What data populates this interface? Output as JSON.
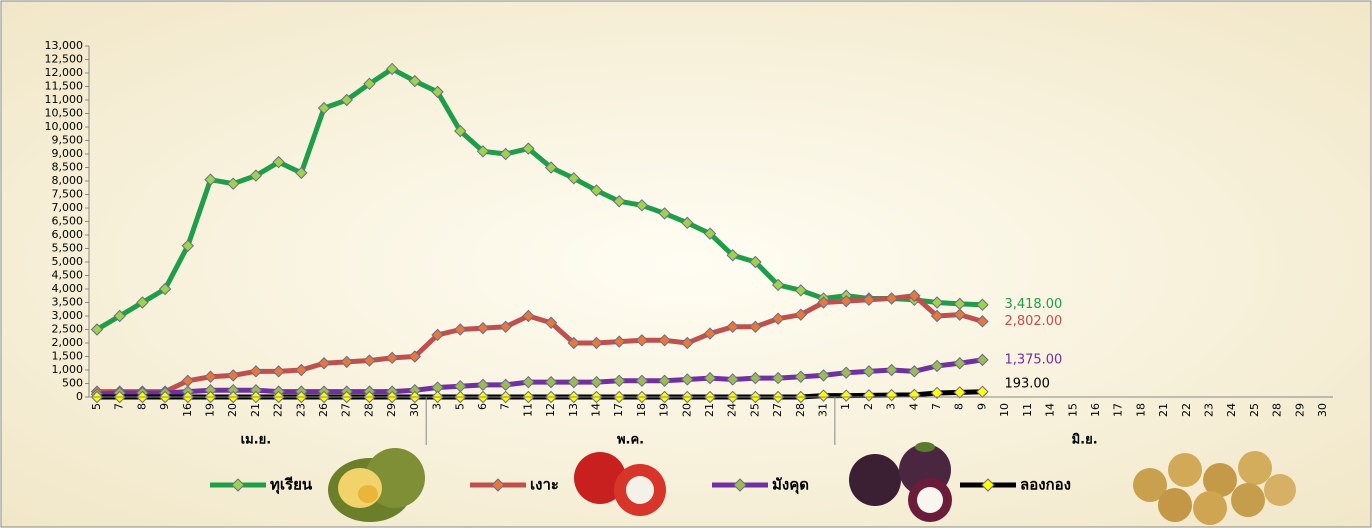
{
  "chart_data": {
    "type": "line",
    "categories": [
      "5",
      "7",
      "8",
      "9",
      "16",
      "19",
      "20",
      "21",
      "22",
      "23",
      "26",
      "27",
      "28",
      "29",
      "30",
      "3",
      "5",
      "6",
      "7",
      "11",
      "12",
      "13",
      "14",
      "17",
      "18",
      "19",
      "20",
      "21",
      "24",
      "25",
      "27",
      "28",
      "31",
      "1",
      "2",
      "3",
      "4",
      "7",
      "8",
      "9",
      "10",
      "11",
      "14",
      "15",
      "16",
      "17",
      "18",
      "21",
      "22",
      "23",
      "24",
      "25",
      "28",
      "29",
      "30"
    ],
    "months": [
      "เม.ย.",
      "พ.ค.",
      "มิ.ย."
    ],
    "series": [
      {
        "name": "ทุเรียน",
        "color": "#1e9e48",
        "marker_color": "#9bd34c",
        "values": [
          2500,
          3000,
          3500,
          4000,
          5600,
          8050,
          7900,
          8200,
          8700,
          8300,
          10700,
          11000,
          11600,
          12150,
          11700,
          11300,
          9850,
          9100,
          9000,
          9200,
          8500,
          8100,
          7650,
          7250,
          7100,
          6800,
          6450,
          6050,
          5250,
          5000,
          4150,
          3950,
          3650,
          3750,
          3650,
          3650,
          3600,
          3500,
          3450,
          3418,
          null,
          null,
          null,
          null,
          null,
          null,
          null,
          null,
          null,
          null,
          null,
          null,
          null,
          null,
          null
        ],
        "value_labels": [
          null,
          null,
          null,
          null,
          null,
          null,
          null,
          null,
          null,
          null,
          null,
          null,
          null,
          null,
          null,
          null,
          null,
          null,
          null,
          null,
          null,
          null,
          null,
          null,
          null,
          null,
          null,
          null,
          null,
          null,
          null,
          null,
          null,
          null,
          null,
          null,
          null,
          null,
          null,
          "3,418.00",
          null,
          null,
          null,
          null,
          null,
          null,
          null,
          null,
          null,
          null,
          null,
          null,
          null,
          null,
          null
        ]
      },
      {
        "name": "เงาะ",
        "color": "#c0504d",
        "marker_color": "#e8773a",
        "values": [
          200,
          200,
          200,
          200,
          600,
          750,
          800,
          950,
          950,
          1000,
          1250,
          1300,
          1350,
          1450,
          1500,
          2300,
          2500,
          2550,
          2600,
          3000,
          2750,
          2000,
          2000,
          2050,
          2100,
          2100,
          2000,
          2350,
          2600,
          2600,
          2900,
          3050,
          3500,
          3550,
          3600,
          3650,
          3750,
          3000,
          3050,
          2802,
          null,
          null,
          null,
          null,
          null,
          null,
          null,
          null,
          null,
          null,
          null,
          null,
          null,
          null,
          null
        ],
        "value_labels": [
          null,
          null,
          null,
          null,
          null,
          null,
          null,
          null,
          null,
          null,
          null,
          null,
          null,
          null,
          null,
          null,
          null,
          null,
          null,
          null,
          null,
          null,
          null,
          null,
          null,
          null,
          null,
          null,
          null,
          null,
          null,
          null,
          null,
          null,
          null,
          null,
          null,
          null,
          null,
          "2,802.00",
          null,
          null,
          null,
          null,
          null,
          null,
          null,
          null,
          null,
          null,
          null,
          null,
          null,
          null,
          null
        ]
      },
      {
        "name": "มังคุด",
        "color": "#7030a0",
        "marker_color": "#9bbb59",
        "values": [
          100,
          150,
          150,
          150,
          200,
          250,
          250,
          250,
          200,
          200,
          200,
          200,
          200,
          200,
          250,
          350,
          400,
          450,
          450,
          550,
          550,
          550,
          550,
          600,
          600,
          600,
          650,
          700,
          650,
          700,
          700,
          750,
          800,
          900,
          950,
          1000,
          950,
          1150,
          1250,
          1375,
          null,
          null,
          null,
          null,
          null,
          null,
          null,
          null,
          null,
          null,
          null,
          null,
          null,
          null,
          null
        ],
        "value_labels": [
          null,
          null,
          null,
          null,
          null,
          null,
          null,
          null,
          null,
          null,
          null,
          null,
          null,
          null,
          null,
          null,
          null,
          null,
          null,
          null,
          null,
          null,
          null,
          null,
          null,
          null,
          null,
          null,
          null,
          null,
          null,
          null,
          null,
          null,
          null,
          null,
          null,
          null,
          null,
          "1,375.00",
          null,
          null,
          null,
          null,
          null,
          null,
          null,
          null,
          null,
          null,
          null,
          null,
          null,
          null,
          null
        ]
      },
      {
        "name": "ลองกอง",
        "color": "#000000",
        "marker_color": "#ffff00",
        "values": [
          0,
          0,
          0,
          0,
          0,
          0,
          0,
          0,
          0,
          0,
          0,
          0,
          0,
          0,
          0,
          0,
          0,
          0,
          0,
          0,
          0,
          0,
          0,
          0,
          0,
          0,
          0,
          0,
          0,
          0,
          0,
          0,
          50,
          50,
          60,
          70,
          80,
          150,
          170,
          193,
          null,
          null,
          null,
          null,
          null,
          null,
          null,
          null,
          null,
          null,
          null,
          null,
          null,
          null,
          null
        ],
        "value_labels": [
          null,
          null,
          null,
          null,
          null,
          null,
          null,
          null,
          null,
          null,
          null,
          null,
          null,
          null,
          null,
          null,
          null,
          null,
          null,
          null,
          null,
          null,
          null,
          null,
          null,
          null,
          null,
          null,
          null,
          null,
          null,
          null,
          null,
          null,
          null,
          null,
          null,
          null,
          null,
          "193.00",
          null,
          null,
          null,
          null,
          null,
          null,
          null,
          null,
          null,
          null,
          null,
          null,
          null,
          null,
          null
        ]
      }
    ],
    "ylim": [
      0,
      13000
    ],
    "yticks": [
      0,
      500,
      {
        "value": 1000,
        "label": "1,000"
      },
      {
        "value": 1500,
        "label": "1,500"
      },
      {
        "value": 2000,
        "label": "2,000"
      },
      {
        "value": 2500,
        "label": "2,500"
      },
      {
        "value": 3000,
        "label": "3,000"
      },
      {
        "value": 3500,
        "label": "3,500"
      },
      {
        "value": 4000,
        "label": "4,000"
      },
      {
        "value": 4500,
        "label": "4,500"
      },
      {
        "value": 5000,
        "label": "5,000"
      },
      {
        "value": 5500,
        "label": "5,500"
      },
      {
        "value": 6000,
        "label": "6,000"
      },
      {
        "value": 6500,
        "label": "6,500"
      },
      {
        "value": 7000,
        "label": "7,000"
      },
      {
        "value": 7500,
        "label": "7,500"
      },
      {
        "value": 8000,
        "label": "8,000"
      },
      {
        "value": 8500,
        "label": "8,500"
      },
      {
        "value": 9000,
        "label": "9,000"
      },
      {
        "value": 9500,
        "label": "9,500"
      },
      {
        "value": 10000,
        "label": "10,000"
      },
      {
        "value": 10500,
        "label": "10,500"
      },
      {
        "value": 11000,
        "label": "11,000"
      },
      {
        "value": 11500,
        "label": "11,500"
      },
      {
        "value": 12000,
        "label": "12,000"
      },
      {
        "value": 12500,
        "label": "12,500"
      },
      {
        "value": 13000,
        "label": "13,000"
      }
    ],
    "grid": false
  }
}
